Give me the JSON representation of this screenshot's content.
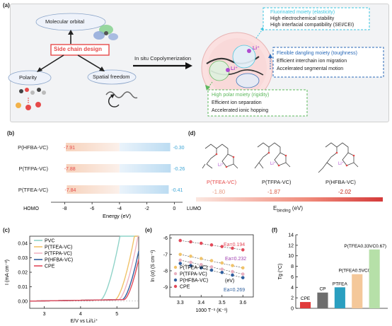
{
  "panel_a": {
    "label": "(a)",
    "molecular_orbital": "Molecular orbital",
    "side_chain_design": "Side chain design",
    "polarity": "Polarity",
    "spatial_freedom": "Spatial freedom",
    "copolymerization": "In situ Copolymerization",
    "li_label": "Li⁺",
    "fluorinated_title": "Fluorinated moiety (elasticity)",
    "fluorinated_lines": [
      "High electrochemical stability",
      "High interfacial compatibility (SEI/CEI)"
    ],
    "flexible_title": "Flexible dangling moiety (toughness)",
    "flexible_lines": [
      "Efficient interchain ion migration",
      "Accelerated segmental motion"
    ],
    "polar_title": "High polar moiety (rigidity)",
    "polar_lines": [
      "Efficient ion separation",
      "Accelerated ionic hopping"
    ],
    "colors": {
      "red": "#e64a4a",
      "cyan": "#3ec6e0",
      "blue": "#2a6ab8",
      "green": "#5cb85c"
    }
  },
  "panel_b": {
    "label": "(b)",
    "homo_label": "HOMO",
    "lumo_label": "LUMO",
    "xlabel": "Energy (eV)",
    "xticks": [
      "-8",
      "-6",
      "-4",
      "-2",
      "0"
    ]
  },
  "panel_c": {
    "label": "(c)",
    "ylabel": "I (mA cm⁻²)",
    "xlabel": "E/V vs Li/Li⁺",
    "yticks": [
      "0.00",
      "0.01",
      "0.02",
      "0.03",
      "0.04"
    ],
    "xticks": [
      "3",
      "4",
      "5"
    ],
    "legend": [
      "PVC",
      "P(TFEA-VC)",
      "P(TFPA-VC)",
      "P(HFBA-VC)",
      "CPE"
    ]
  },
  "panel_d": {
    "label": "(d)",
    "li_label": "Li⁺",
    "colorbar_label": "E",
    "colorbar_sub": "binding",
    "colorbar_unit": " (eV)"
  },
  "panel_e": {
    "label": "(e)",
    "ylabel": "ln (σ) (S cm⁻¹)",
    "xlabel": "1000 T⁻¹ (K⁻¹)",
    "unit_note": "(eV)",
    "yticks": [
      "-6",
      "-7",
      "-8",
      "-9"
    ],
    "xticks": [
      "3.3",
      "3.4",
      "3.5",
      "3.6"
    ]
  },
  "panel_f": {
    "label": "(f)",
    "ylabel": "Tg (°C)",
    "yticks": [
      "0",
      "2",
      "4",
      "6",
      "8",
      "10",
      "12",
      "14"
    ]
  },
  "chart_data": [
    {
      "type": "bar",
      "panel": "b",
      "categories": [
        "P(HFBA-VC)",
        "P(TFPA-VC)",
        "P(TFEA-VC)"
      ],
      "series": [
        {
          "name": "HOMO",
          "values": [
            -7.91,
            -7.88,
            -7.84
          ],
          "labels": [
            "-7.91",
            "-7.88",
            "-7.84"
          ]
        },
        {
          "name": "LUMO",
          "values": [
            -0.3,
            -0.26,
            -0.41
          ],
          "labels": [
            "-0.30",
            "-0.26",
            "-0.41"
          ]
        }
      ],
      "xlabel": "Energy (eV)",
      "xlim": [
        -9,
        0.6
      ]
    },
    {
      "type": "line",
      "panel": "c",
      "series": [
        {
          "name": "PVC",
          "color": "#8fd3c8",
          "onset": 4.55
        },
        {
          "name": "P(TFEA-VC)",
          "color": "#f0c36a",
          "onset": 4.95
        },
        {
          "name": "P(TFPA-VC)",
          "color": "#f1b5c4",
          "onset": 5.05
        },
        {
          "name": "P(HFBA-VC)",
          "color": "#2f5f9e",
          "onset": 5.15
        },
        {
          "name": "CPE",
          "color": "#e34a5a",
          "onset": 5.2
        }
      ],
      "xlabel": "E/V vs Li/Li⁺",
      "ylabel": "I (mA cm⁻²)",
      "xlim": [
        2.6,
        5.6
      ],
      "ylim": [
        -0.005,
        0.045
      ]
    },
    {
      "type": "bar",
      "panel": "d",
      "categories": [
        "P(TFEA-VC)",
        "P(TFPA-VC)",
        "P(HFBA-VC)"
      ],
      "values": [
        -1.8,
        -1.87,
        -2.02
      ],
      "labels": [
        "-1.80",
        "-1.87",
        "-2.02"
      ],
      "label_colors": [
        "#e8a08a",
        "#d9604a",
        "#c0271a"
      ]
    },
    {
      "type": "scatter",
      "panel": "e",
      "x": [
        3.3,
        3.35,
        3.4,
        3.45,
        3.5,
        3.55,
        3.6
      ],
      "series": [
        {
          "name": "P(TFEA-VC)",
          "color": "#f0c36a",
          "y": [
            -7.0,
            -7.11,
            -7.25,
            -7.38,
            -7.52,
            -7.68,
            -7.82
          ]
        },
        {
          "name": "P(TFPA-VC)",
          "color": "#e8b0c0",
          "y": [
            -7.35,
            -7.48,
            -7.62,
            -7.76,
            -7.9,
            -8.05,
            -8.2
          ]
        },
        {
          "name": "P(HFBA-VC)",
          "color": "#2f5f9e",
          "y": [
            -7.55,
            -7.68,
            -7.82,
            -7.96,
            -8.1,
            -8.26,
            -8.42
          ]
        },
        {
          "name": "CPE",
          "color": "#e34a5a",
          "y": [
            -6.15,
            -6.23,
            -6.32,
            -6.42,
            -6.52,
            -6.62,
            -6.72
          ]
        }
      ],
      "annotations": [
        {
          "label": "Ea=0.194",
          "color": "#e34a5a"
        },
        {
          "label": "Ea=0.232",
          "color": "#a040b0"
        },
        {
          "label": "Ea=0.269",
          "color": "#2f5f9e"
        }
      ],
      "xlabel": "1000 T⁻¹ (K⁻¹)",
      "ylabel": "ln (σ) (S cm⁻¹)",
      "xlim": [
        3.25,
        3.65
      ],
      "ylim": [
        -9.6,
        -5.8
      ]
    },
    {
      "type": "bar",
      "panel": "f",
      "categories": [
        "CPE",
        "CP",
        "PTFEA",
        "P(TFEA0.5VC0.5)",
        "P(TFEA0.33VC0.67)"
      ],
      "values": [
        1.2,
        3.0,
        4.0,
        6.5,
        11.2
      ],
      "colors": [
        "#e03a3a",
        "#6d6d6d",
        "#2a9fc0",
        "#f4c89a",
        "#b6e0a8"
      ],
      "ylabel": "Tg (°C)",
      "ylim": [
        0,
        14
      ]
    }
  ]
}
